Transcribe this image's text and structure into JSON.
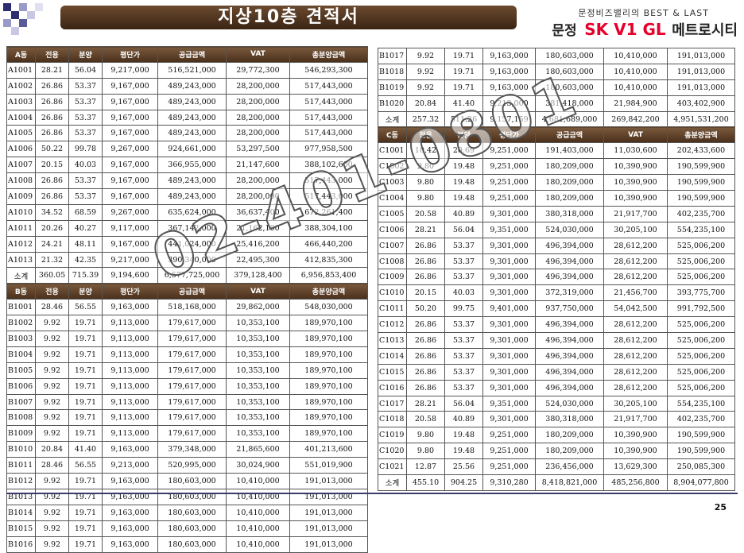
{
  "header": {
    "title": "지상10층  견적서",
    "brand_tagline": "문정비즈밸리의 BEST & LAST",
    "brand_prefix": "문정",
    "brand_logo": "SK V1 GL",
    "brand_suffix": "메트로시티"
  },
  "colors": {
    "header_brown": "#5a3b22",
    "brand_red": "#e4002b",
    "footer_navy": "#3a3a6e"
  },
  "watermark": "02-401-0801",
  "page_number": "25",
  "left_sections": [
    {
      "headers": [
        "A동",
        "전용",
        "분양",
        "평단가",
        "공급금액",
        "VAT",
        "총분양금액"
      ],
      "rows": [
        [
          "A1001",
          "28.21",
          "56.04",
          "9,217,000",
          "516,521,000",
          "29,772,300",
          "546,293,300"
        ],
        [
          "A1002",
          "26.86",
          "53.37",
          "9,167,000",
          "489,243,000",
          "28,200,000",
          "517,443,000"
        ],
        [
          "A1003",
          "26.86",
          "53.37",
          "9,167,000",
          "489,243,000",
          "28,200,000",
          "517,443,000"
        ],
        [
          "A1004",
          "26.86",
          "53.37",
          "9,167,000",
          "489,243,000",
          "28,200,000",
          "517,443,000"
        ],
        [
          "A1005",
          "26.86",
          "53.37",
          "9,167,000",
          "489,243,000",
          "28,200,000",
          "517,443,000"
        ],
        [
          "A1006",
          "50.22",
          "99.78",
          "9,267,000",
          "924,661,000",
          "53,297,500",
          "977,958,500"
        ],
        [
          "A1007",
          "20.15",
          "40.03",
          "9,167,000",
          "366,955,000",
          "21,147,600",
          "388,102,600"
        ],
        [
          "A1008",
          "26.86",
          "53.37",
          "9,167,000",
          "489,243,000",
          "28,200,000",
          "517,443,000"
        ],
        [
          "A1009",
          "26.86",
          "53.37",
          "9,167,000",
          "489,243,000",
          "28,200,000",
          "517,443,000"
        ],
        [
          "A1010",
          "34.52",
          "68.59",
          "9,267,000",
          "635,624,000",
          "36,637,400",
          "672,261,400"
        ],
        [
          "A1011",
          "20.26",
          "40.27",
          "9,117,000",
          "367,142,000",
          "21,162,100",
          "388,304,100"
        ],
        [
          "A1012",
          "24.21",
          "48.11",
          "9,167,000",
          "441,024,000",
          "25,416,200",
          "466,440,200"
        ],
        [
          "A1013",
          "21.32",
          "42.35",
          "9,217,000",
          "390,340,000",
          "22,495,300",
          "412,835,300"
        ]
      ],
      "subtotal": [
        "소계",
        "360.05",
        "715.39",
        "9,194,600",
        "6,577,725,000",
        "379,128,400",
        "6,956,853,400"
      ]
    },
    {
      "headers": [
        "B동",
        "전용",
        "분양",
        "평단가",
        "공급금액",
        "VAT",
        "총분양금액"
      ],
      "rows": [
        [
          "B1001",
          "28.46",
          "56.55",
          "9,163,000",
          "518,168,000",
          "29,862,000",
          "548,030,000"
        ],
        [
          "B1002",
          "9.92",
          "19.71",
          "9,113,000",
          "179,617,000",
          "10,353,100",
          "189,970,100"
        ],
        [
          "B1003",
          "9.92",
          "19.71",
          "9,113,000",
          "179,617,000",
          "10,353,100",
          "189,970,100"
        ],
        [
          "B1004",
          "9.92",
          "19.71",
          "9,113,000",
          "179,617,000",
          "10,353,100",
          "189,970,100"
        ],
        [
          "B1005",
          "9.92",
          "19.71",
          "9,113,000",
          "179,617,000",
          "10,353,100",
          "189,970,100"
        ],
        [
          "B1006",
          "9.92",
          "19.71",
          "9,113,000",
          "179,617,000",
          "10,353,100",
          "189,970,100"
        ],
        [
          "B1007",
          "9.92",
          "19.71",
          "9,113,000",
          "179,617,000",
          "10,353,100",
          "189,970,100"
        ],
        [
          "B1008",
          "9.92",
          "19.71",
          "9,113,000",
          "179,617,000",
          "10,353,100",
          "189,970,100"
        ],
        [
          "B1009",
          "9.92",
          "19.71",
          "9,113,000",
          "179,617,000",
          "10,353,100",
          "189,970,100"
        ],
        [
          "B1010",
          "20.84",
          "41.40",
          "9,163,000",
          "379,348,000",
          "21,865,600",
          "401,213,600"
        ],
        [
          "B1011",
          "28.46",
          "56.55",
          "9,213,000",
          "520,995,000",
          "30,024,900",
          "551,019,900"
        ],
        [
          "B1012",
          "9.92",
          "19.71",
          "9,163,000",
          "180,603,000",
          "10,410,000",
          "191,013,000"
        ],
        [
          "B1013",
          "9.92",
          "19.71",
          "9,163,000",
          "180,603,000",
          "10,410,000",
          "191,013,000"
        ],
        [
          "B1014",
          "9.92",
          "19.71",
          "9,163,000",
          "180,603,000",
          "10,410,000",
          "191,013,000"
        ],
        [
          "B1015",
          "9.92",
          "19.71",
          "9,163,000",
          "180,603,000",
          "10,410,000",
          "191,013,000"
        ],
        [
          "B1016",
          "9.92",
          "19.71",
          "9,163,000",
          "180,603,000",
          "10,410,000",
          "191,013,000"
        ]
      ]
    }
  ],
  "right_sections": [
    {
      "rows": [
        [
          "B1017",
          "9.92",
          "19.71",
          "9,163,000",
          "180,603,000",
          "10,410,000",
          "191,013,000"
        ],
        [
          "B1018",
          "9.92",
          "19.71",
          "9,163,000",
          "180,603,000",
          "10,410,000",
          "191,013,000"
        ],
        [
          "B1019",
          "9.92",
          "19.71",
          "9,163,000",
          "180,603,000",
          "10,410,000",
          "191,013,000"
        ],
        [
          "B1020",
          "20.84",
          "41.40",
          "9,213,000",
          "381,418,000",
          "21,984,900",
          "403,402,900"
        ]
      ],
      "subtotal": [
        "소계",
        "257.32",
        "511.26",
        "9,157,159",
        "4,681,689,000",
        "269,842,200",
        "4,951,531,200"
      ]
    },
    {
      "headers": [
        "C동",
        "전용",
        "분양",
        "평단가",
        "공급금액",
        "VAT",
        "총분양금액"
      ],
      "rows": [
        [
          "C1001",
          "10.42",
          "20.69",
          "9,251,000",
          "191,403,000",
          "11,030,600",
          "202,433,600"
        ],
        [
          "C1002",
          "9.80",
          "19.48",
          "9,251,000",
          "180,209,000",
          "10,390,900",
          "190,599,900"
        ],
        [
          "C1003",
          "9.80",
          "19.48",
          "9,251,000",
          "180,209,000",
          "10,390,900",
          "190,599,900"
        ],
        [
          "C1004",
          "9.80",
          "19.48",
          "9,251,000",
          "180,209,000",
          "10,390,900",
          "190,599,900"
        ],
        [
          "C1005",
          "20.58",
          "40.89",
          "9,301,000",
          "380,318,000",
          "21,917,700",
          "402,235,700"
        ],
        [
          "C1006",
          "28.21",
          "56.04",
          "9,351,000",
          "524,030,000",
          "30,205,100",
          "554,235,100"
        ],
        [
          "C1007",
          "26.86",
          "53.37",
          "9,301,000",
          "496,394,000",
          "28,612,200",
          "525,006,200"
        ],
        [
          "C1008",
          "26.86",
          "53.37",
          "9,301,000",
          "496,394,000",
          "28,612,200",
          "525,006,200"
        ],
        [
          "C1009",
          "26.86",
          "53.37",
          "9,301,000",
          "496,394,000",
          "28,612,200",
          "525,006,200"
        ],
        [
          "C1010",
          "20.15",
          "40.03",
          "9,301,000",
          "372,319,000",
          "21,456,700",
          "393,775,700"
        ],
        [
          "C1011",
          "50.20",
          "99.75",
          "9,401,000",
          "937,750,000",
          "54,042,500",
          "991,792,500"
        ],
        [
          "C1012",
          "26.86",
          "53.37",
          "9,301,000",
          "496,394,000",
          "28,612,200",
          "525,006,200"
        ],
        [
          "C1013",
          "26.86",
          "53.37",
          "9,301,000",
          "496,394,000",
          "28,612,200",
          "525,006,200"
        ],
        [
          "C1014",
          "26.86",
          "53.37",
          "9,301,000",
          "496,394,000",
          "28,612,200",
          "525,006,200"
        ],
        [
          "C1015",
          "26.86",
          "53.37",
          "9,301,000",
          "496,394,000",
          "28,612,200",
          "525,006,200"
        ],
        [
          "C1016",
          "26.86",
          "53.37",
          "9,301,000",
          "496,394,000",
          "28,612,200",
          "525,006,200"
        ],
        [
          "C1017",
          "28.21",
          "56.04",
          "9,351,000",
          "524,030,000",
          "30,205,100",
          "554,235,100"
        ],
        [
          "C1018",
          "20.58",
          "40.89",
          "9,301,000",
          "380,318,000",
          "21,917,700",
          "402,235,700"
        ],
        [
          "C1019",
          "9.80",
          "19.48",
          "9,251,000",
          "180,209,000",
          "10,390,900",
          "190,599,900"
        ],
        [
          "C1020",
          "9.80",
          "19.48",
          "9,251,000",
          "180,209,000",
          "10,390,900",
          "190,599,900"
        ],
        [
          "C1021",
          "12.87",
          "25.56",
          "9,251,000",
          "236,456,000",
          "13,629,300",
          "250,085,300"
        ]
      ],
      "subtotal": [
        "소계",
        "455.10",
        "904.25",
        "9,310,280",
        "8,418,821,000",
        "485,256,800",
        "8,904,077,800"
      ]
    }
  ]
}
